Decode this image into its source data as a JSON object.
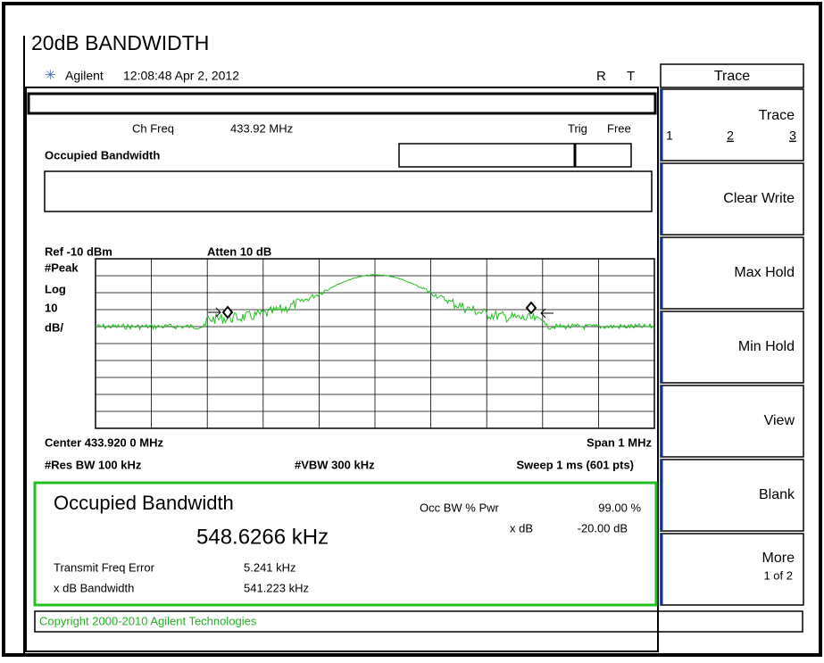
{
  "header": {
    "title": "20dB BANDWIDTH",
    "brand": "Agilent",
    "timestamp": "12:08:48  Apr 2, 2012",
    "flag_r": "R",
    "flag_t": "T"
  },
  "softkeys": {
    "menu": "Trace",
    "keys": [
      {
        "label": "Trace",
        "options": [
          "1",
          "2",
          "3"
        ]
      },
      {
        "label": "Clear Write"
      },
      {
        "label": "Max Hold"
      },
      {
        "label": "Min Hold"
      },
      {
        "label": "View"
      },
      {
        "label": "Blank"
      },
      {
        "label": "More",
        "sub": "1 of 2"
      }
    ]
  },
  "screen": {
    "ch_freq_label": "Ch Freq",
    "ch_freq": "433.92 MHz",
    "trig_label": "Trig",
    "trig": "Free",
    "measure": "Occupied Bandwidth",
    "ref": "Ref -10 dBm",
    "atten": "Atten 10 dB",
    "detector": "#Peak",
    "scale_type": "Log",
    "scale": "10",
    "scale_unit": "dB/",
    "center": "Center 433.920 0 MHz",
    "span": "Span 1 MHz",
    "res_bw": "#Res BW 100 kHz",
    "vbw": "#VBW 300 kHz",
    "sweep": "Sweep 1 ms (601 pts)"
  },
  "results": {
    "title": "Occupied Bandwidth",
    "occ_bw": "548.6266 kHz",
    "pwr_label": "Occ BW % Pwr",
    "pwr": "99.00 %",
    "xdb_label": "x dB",
    "xdb": "-20.00 dB",
    "freq_err_label": "Transmit Freq Error",
    "freq_err": "5.241 kHz",
    "xdb_bw_label": "x dB Bandwidth",
    "xdb_bw": "541.223 kHz"
  },
  "footer": {
    "copyright": "Copyright 2000-2010 Agilent Technologies"
  }
}
